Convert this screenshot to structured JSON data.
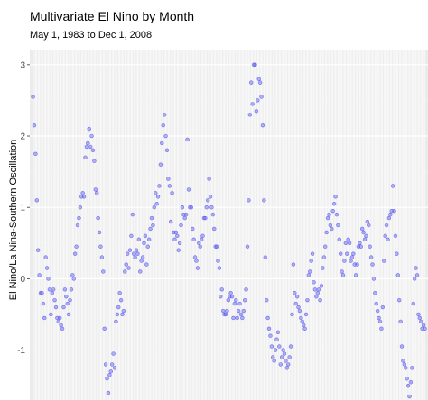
{
  "chart_data": {
    "type": "scatter",
    "title": "Multivariate El Nino by Month",
    "subtitle": "May 1, 1983 to Dec 1, 2008",
    "xlabel": "",
    "ylabel": "El Nino/La Nina-Southern Oscillation",
    "x_range": [
      "1983-05-01",
      "2008-12-01"
    ],
    "ylim": [
      -1.7,
      3.2
    ],
    "y_ticks": [
      -1,
      0,
      1,
      2,
      3
    ],
    "grid": true,
    "point_color": "#5a5af0",
    "series": [
      {
        "x": [
          "1983-05",
          "1983-06",
          "1983-07",
          "1983-08",
          "1983-09",
          "1983-10",
          "1983-11",
          "1983-12",
          "1984-01",
          "1984-02",
          "1984-03",
          "1984-04",
          "1984-05",
          "1984-06",
          "1984-07",
          "1984-08",
          "1984-09",
          "1984-10",
          "1984-11",
          "1984-12",
          "1985-01",
          "1985-02",
          "1985-03",
          "1985-04",
          "1985-05",
          "1985-06",
          "1985-07",
          "1985-08",
          "1985-09",
          "1985-10",
          "1985-11",
          "1985-12",
          "1986-01",
          "1986-02",
          "1986-03",
          "1986-04",
          "1986-05",
          "1986-06",
          "1986-07",
          "1986-08",
          "1986-09",
          "1986-10",
          "1986-11",
          "1986-12",
          "1987-01",
          "1987-02",
          "1987-03",
          "1987-04",
          "1987-05",
          "1987-06",
          "1987-07",
          "1987-08",
          "1987-09",
          "1987-10",
          "1987-11",
          "1987-12",
          "1988-01",
          "1988-02",
          "1988-03",
          "1988-04",
          "1988-05",
          "1988-06",
          "1988-07",
          "1988-08",
          "1988-09",
          "1988-10",
          "1988-11",
          "1988-12",
          "1989-01",
          "1989-02",
          "1989-03",
          "1989-04",
          "1989-05",
          "1989-06",
          "1989-07",
          "1989-08",
          "1989-09",
          "1989-10",
          "1989-11",
          "1989-12",
          "1990-01",
          "1990-02",
          "1990-03",
          "1990-04",
          "1990-05",
          "1990-06",
          "1990-07",
          "1990-08",
          "1990-09",
          "1990-10",
          "1990-11",
          "1990-12",
          "1991-01",
          "1991-02",
          "1991-03",
          "1991-04",
          "1991-05",
          "1991-06",
          "1991-07",
          "1991-08",
          "1991-09",
          "1991-10",
          "1991-11",
          "1991-12",
          "1992-01",
          "1992-02",
          "1992-03",
          "1992-04",
          "1992-05",
          "1992-06",
          "1992-07",
          "1992-08",
          "1992-09",
          "1992-10",
          "1992-11",
          "1992-12",
          "1993-01",
          "1993-02",
          "1993-03",
          "1993-04",
          "1993-05",
          "1993-06",
          "1993-07",
          "1993-08",
          "1993-09",
          "1993-10",
          "1993-11",
          "1993-12",
          "1994-01",
          "1994-02",
          "1994-03",
          "1994-04",
          "1994-05",
          "1994-06",
          "1994-07",
          "1994-08",
          "1994-09",
          "1994-10",
          "1994-11",
          "1994-12",
          "1995-01",
          "1995-02",
          "1995-03",
          "1995-04",
          "1995-05",
          "1995-06",
          "1995-07",
          "1995-08",
          "1995-09",
          "1995-10",
          "1995-11",
          "1995-12",
          "1996-01",
          "1996-02",
          "1996-03",
          "1996-04",
          "1996-05",
          "1996-06",
          "1996-07",
          "1996-08",
          "1996-09",
          "1996-10",
          "1996-11",
          "1996-12",
          "1997-01",
          "1997-02",
          "1997-03",
          "1997-04",
          "1997-05",
          "1997-06",
          "1997-07",
          "1997-08",
          "1997-09",
          "1997-10",
          "1997-11",
          "1997-12",
          "1998-01",
          "1998-02",
          "1998-03",
          "1998-04",
          "1998-05",
          "1998-06",
          "1998-07",
          "1998-08",
          "1998-09",
          "1998-10",
          "1998-11",
          "1998-12",
          "1999-01",
          "1999-02",
          "1999-03",
          "1999-04",
          "1999-05",
          "1999-06",
          "1999-07",
          "1999-08",
          "1999-09",
          "1999-10",
          "1999-11",
          "1999-12",
          "2000-01",
          "2000-02",
          "2000-03",
          "2000-04",
          "2000-05",
          "2000-06",
          "2000-07",
          "2000-08",
          "2000-09",
          "2000-10",
          "2000-11",
          "2000-12",
          "2001-01",
          "2001-02",
          "2001-03",
          "2001-04",
          "2001-05",
          "2001-06",
          "2001-07",
          "2001-08",
          "2001-09",
          "2001-10",
          "2001-11",
          "2001-12",
          "2002-01",
          "2002-02",
          "2002-03",
          "2002-04",
          "2002-05",
          "2002-06",
          "2002-07",
          "2002-08",
          "2002-09",
          "2002-10",
          "2002-11",
          "2002-12",
          "2003-01",
          "2003-02",
          "2003-03",
          "2003-04",
          "2003-05",
          "2003-06",
          "2003-07",
          "2003-08",
          "2003-09",
          "2003-10",
          "2003-11",
          "2003-12",
          "2004-01",
          "2004-02",
          "2004-03",
          "2004-04",
          "2004-05",
          "2004-06",
          "2004-07",
          "2004-08",
          "2004-09",
          "2004-10",
          "2004-11",
          "2004-12",
          "2005-01",
          "2005-02",
          "2005-03",
          "2005-04",
          "2005-05",
          "2005-06",
          "2005-07",
          "2005-08",
          "2005-09",
          "2005-10",
          "2005-11",
          "2005-12",
          "2006-01",
          "2006-02",
          "2006-03",
          "2006-04",
          "2006-05",
          "2006-06",
          "2006-07",
          "2006-08",
          "2006-09",
          "2006-10",
          "2006-11",
          "2006-12",
          "2007-01",
          "2007-02",
          "2007-03",
          "2007-04",
          "2007-05",
          "2007-06",
          "2007-07",
          "2007-08",
          "2007-09",
          "2007-10",
          "2007-11",
          "2007-12",
          "2008-01",
          "2008-02",
          "2008-03",
          "2008-04",
          "2008-05",
          "2008-06",
          "2008-07",
          "2008-08",
          "2008-09",
          "2008-10",
          "2008-11",
          "2008-12"
        ],
        "y": [
          2.55,
          2.15,
          1.75,
          1.1,
          0.4,
          0.05,
          -0.2,
          -0.2,
          -0.35,
          -0.55,
          0.3,
          0.15,
          0.0,
          -0.15,
          -0.5,
          -0.2,
          -0.15,
          -0.3,
          -0.4,
          -0.55,
          -0.6,
          -0.55,
          -0.65,
          -0.7,
          -0.4,
          -0.15,
          -0.25,
          -0.35,
          -0.5,
          -0.3,
          -0.15,
          0.05,
          0.0,
          0.35,
          0.45,
          0.75,
          0.85,
          1.0,
          1.15,
          1.2,
          1.15,
          1.7,
          1.85,
          1.9,
          2.1,
          1.85,
          2.0,
          1.8,
          1.65,
          1.25,
          1.2,
          0.85,
          0.65,
          0.45,
          0.3,
          0.1,
          -0.7,
          -1.2,
          -1.4,
          -1.6,
          -1.35,
          -1.3,
          -1.2,
          -1.05,
          -1.25,
          -0.6,
          -0.5,
          -0.4,
          -0.2,
          -0.3,
          -0.5,
          -0.45,
          0.1,
          0.2,
          0.35,
          0.15,
          0.4,
          0.6,
          0.9,
          0.35,
          0.3,
          0.4,
          0.35,
          0.55,
          0.1,
          0.25,
          0.3,
          0.5,
          0.6,
          0.2,
          0.45,
          0.55,
          0.7,
          0.85,
          0.75,
          1.0,
          1.2,
          1.05,
          1.15,
          1.3,
          1.6,
          1.9,
          2.15,
          2.3,
          2.0,
          1.8,
          1.4,
          1.3,
          0.8,
          1.2,
          0.65,
          0.55,
          0.65,
          0.6,
          0.4,
          0.5,
          0.75,
          1.0,
          0.9,
          0.85,
          0.9,
          1.95,
          1.25,
          1.0,
          1.0,
          0.7,
          0.55,
          0.3,
          0.25,
          0.15,
          0.5,
          0.45,
          0.55,
          0.6,
          0.85,
          0.85,
          1.0,
          1.1,
          1.4,
          1.15,
          1.0,
          0.9,
          0.7,
          0.45,
          0.45,
          0.25,
          0.15,
          -0.25,
          -0.15,
          -0.45,
          -0.5,
          -0.5,
          -0.45,
          -0.3,
          -0.25,
          -0.2,
          -0.25,
          -0.55,
          -0.35,
          -0.3,
          -0.55,
          -0.45,
          -0.35,
          -0.5,
          -0.55,
          -0.45,
          -0.3,
          -0.15,
          0.45,
          1.1,
          2.3,
          2.75,
          2.45,
          3.0,
          3.0,
          2.35,
          2.5,
          2.8,
          2.75,
          2.55,
          2.15,
          1.1,
          0.3,
          -0.3,
          -0.55,
          -0.7,
          -0.8,
          -0.95,
          -1.1,
          -1.15,
          -1.0,
          -0.85,
          -0.75,
          -0.95,
          -1.2,
          -1.1,
          -1.0,
          -1.05,
          -1.15,
          -1.25,
          -1.2,
          -1.1,
          -0.95,
          -0.5,
          0.2,
          -0.2,
          -0.35,
          -0.25,
          -0.4,
          -0.45,
          -0.55,
          -0.6,
          -0.65,
          -0.7,
          -0.5,
          -0.3,
          0.05,
          0.1,
          0.25,
          0.35,
          -0.05,
          -0.15,
          -0.25,
          -0.2,
          -0.15,
          -0.3,
          -0.1,
          0.15,
          0.3,
          0.45,
          0.65,
          0.85,
          0.9,
          0.75,
          0.7,
          0.95,
          1.05,
          1.15,
          0.9,
          0.75,
          0.55,
          0.35,
          0.1,
          0.05,
          0.25,
          0.5,
          0.35,
          0.55,
          0.5,
          0.25,
          0.3,
          0.35,
          0.2,
          0.05,
          0.2,
          0.45,
          0.5,
          0.45,
          0.7,
          0.65,
          0.55,
          0.6,
          0.8,
          0.75,
          0.45,
          0.3,
          0.2,
          0.0,
          -0.2,
          -0.35,
          -0.45,
          -0.55,
          -0.6,
          -0.7,
          -0.4,
          0.25,
          0.6,
          0.75,
          0.55,
          0.85,
          0.9,
          0.95,
          1.3,
          0.95,
          0.6,
          0.35,
          0.05,
          -0.3,
          -0.6,
          -0.95,
          -1.15,
          -1.2,
          -1.25,
          -1.4,
          -1.5,
          -1.65,
          -1.45,
          -1.25,
          -0.35,
          0.0,
          0.15,
          0.05,
          -0.5,
          -0.55,
          -0.6,
          -0.7,
          -0.65,
          -0.7
        ]
      }
    ]
  }
}
